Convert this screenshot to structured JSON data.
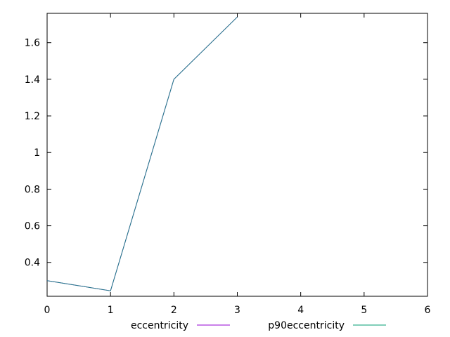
{
  "chart_data": {
    "type": "line",
    "title": "",
    "xlabel": "",
    "ylabel": "",
    "xlim": [
      0,
      6
    ],
    "ylim": [
      0.215,
      1.76
    ],
    "xticks": [
      0,
      1,
      2,
      3,
      4,
      5,
      6
    ],
    "xtick_labels": [
      "0",
      "1",
      "2",
      "3",
      "4",
      "5",
      "6"
    ],
    "yticks": [
      0.4,
      0.6,
      0.8,
      1.0,
      1.2,
      1.4,
      1.6
    ],
    "ytick_labels": [
      "0.4",
      "0.6",
      "0.8",
      "1",
      "1.2",
      "1.4",
      "1.6"
    ],
    "grid": false,
    "legend_position": "bottom-center",
    "series": [
      {
        "name": "eccentricity",
        "color": "#9400d3",
        "x": [
          0,
          1,
          2,
          3
        ],
        "y": [
          0.3,
          0.245,
          1.4,
          1.74
        ]
      },
      {
        "name": "p90eccentricity",
        "color": "#009e73",
        "x": [
          0,
          1,
          2,
          3
        ],
        "y": [
          0.3,
          0.245,
          1.4,
          1.74
        ]
      }
    ]
  }
}
